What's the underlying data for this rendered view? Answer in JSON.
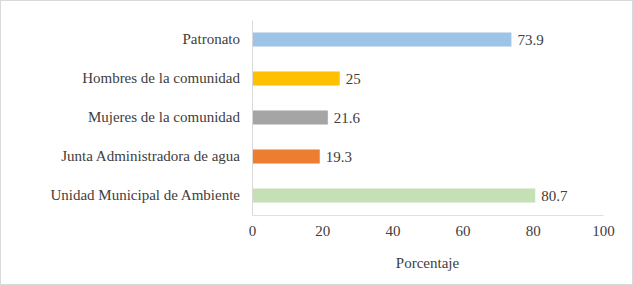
{
  "chart_data": {
    "type": "bar",
    "orientation": "horizontal",
    "categories": [
      "Patronato",
      "Hombres de la comunidad",
      "Mujeres de la comunidad",
      "Junta Administradora de agua",
      "Unidad Municipal de Ambiente"
    ],
    "values": [
      73.9,
      25,
      21.6,
      19.3,
      80.7
    ],
    "colors": [
      "#9dc3e6",
      "#ffc000",
      "#a5a5a5",
      "#ed7d31",
      "#c5e0b4"
    ],
    "xlabel": "Porcentaje",
    "xlim": [
      0,
      100
    ],
    "xticks": [
      0,
      20,
      40,
      60,
      80,
      100
    ],
    "grid": false,
    "data_labels": true
  }
}
